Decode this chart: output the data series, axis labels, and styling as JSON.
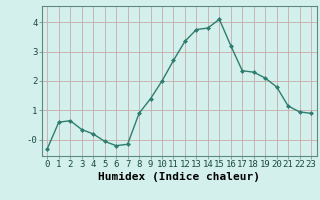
{
  "x": [
    0,
    1,
    2,
    3,
    4,
    5,
    6,
    7,
    8,
    9,
    10,
    11,
    12,
    13,
    14,
    15,
    16,
    17,
    18,
    19,
    20,
    21,
    22,
    23
  ],
  "y": [
    -0.3,
    0.6,
    0.65,
    0.35,
    0.2,
    -0.05,
    -0.2,
    -0.15,
    0.9,
    1.4,
    2.0,
    2.7,
    3.35,
    3.75,
    3.8,
    4.1,
    3.2,
    2.35,
    2.3,
    2.1,
    1.8,
    1.15,
    0.95,
    0.9
  ],
  "line_color": "#2e7d6e",
  "marker": "D",
  "marker_size": 2.0,
  "bg_color": "#d4f0ec",
  "grid_color": "#c8aaaa",
  "xlabel": "Humidex (Indice chaleur)",
  "xlabel_fontsize": 8,
  "ylim": [
    -0.55,
    4.55
  ],
  "xlim": [
    -0.5,
    23.5
  ],
  "yticks": [
    0,
    1,
    2,
    3,
    4
  ],
  "ytick_labels": [
    "-0",
    "1",
    "2",
    "3",
    "4"
  ],
  "xticks": [
    0,
    1,
    2,
    3,
    4,
    5,
    6,
    7,
    8,
    9,
    10,
    11,
    12,
    13,
    14,
    15,
    16,
    17,
    18,
    19,
    20,
    21,
    22,
    23
  ],
  "tick_fontsize": 6.5,
  "linewidth": 1.0
}
